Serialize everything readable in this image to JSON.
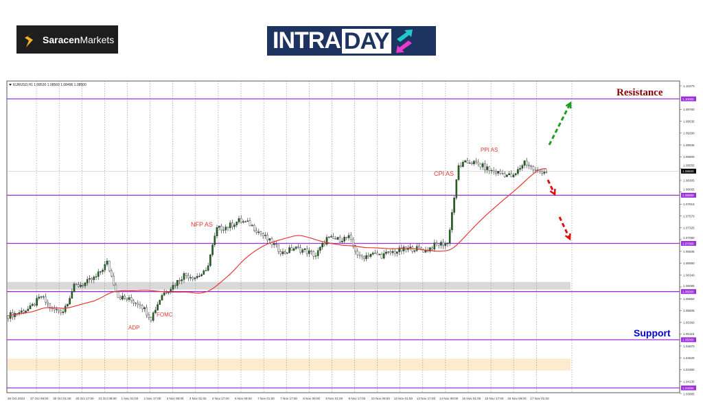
{
  "logos": {
    "left": "SaracenMarkets",
    "right": "INTRADAY"
  },
  "chart_data": {
    "type": "candlestick",
    "symbol_header": "EURUSD,H1  1.08530 1.08569 1.08496 1.08500",
    "current_price": 1.085,
    "ylim": [
      1.03885,
      1.1027
    ],
    "y_ticks": [
      "1.10270",
      "1.09780",
      "1.09535",
      "1.09290",
      "1.09045",
      "1.08800",
      "1.08555",
      "1.08305",
      "1.08065",
      "1.07815",
      "1.07570",
      "1.07325",
      "1.07080",
      "1.06835",
      "1.06590",
      "1.06340",
      "1.06095",
      "1.05850",
      "1.05605",
      "1.05360",
      "1.05115",
      "1.04870",
      "1.04625",
      "1.04380",
      "1.04135",
      "1.03885"
    ],
    "x_ticks": [
      "26 Oct 2023",
      "27 Oct 09:00",
      "30 Oct 01:00",
      "30 Oct 17:00",
      "31 Oct 09:00",
      "1 Nov 01:00",
      "1 Nov 17:00",
      "2 Nov 09:00",
      "3 Nov 01:00",
      "3 Nov 17:00",
      "6 Nov 09:00",
      "7 Nov 01:00",
      "7 Nov 17:00",
      "8 Nov 09:00",
      "9 Nov 01:00",
      "9 Nov 17:00",
      "10 Nov 09:00",
      "13 Nov 01:00",
      "13 Nov 17:00",
      "14 Nov 09:00",
      "15 Nov 01:00",
      "15 Nov 17:00",
      "16 Nov 09:00",
      "17 Nov 01:00"
    ],
    "closes": [
      1.055,
      1.0557,
      1.0565,
      1.059,
      1.0562,
      1.056,
      1.061,
      1.0617,
      1.063,
      1.066,
      1.059,
      1.0583,
      1.0575,
      1.0545,
      1.0594,
      1.0612,
      1.0635,
      1.063,
      1.064,
      1.073,
      1.0735,
      1.0747,
      1.074,
      1.072,
      1.07,
      1.068,
      1.069,
      1.0685,
      1.0675,
      1.071,
      1.0708,
      1.0712,
      1.067,
      1.0678,
      1.0675,
      1.0682,
      1.0687,
      1.069,
      1.0685,
      1.0698,
      1.07,
      1.086,
      1.087,
      1.0862,
      1.085,
      1.0845,
      1.0838,
      1.087,
      1.085,
      1.085
    ],
    "levels": [
      {
        "price": 1.1,
        "label": "1.10000"
      },
      {
        "price": 1.08,
        "label": "1.08000"
      },
      {
        "price": 1.07,
        "label": "1.07000"
      },
      {
        "price": 1.06,
        "label": "1.06000"
      },
      {
        "price": 1.05,
        "label": "1.05000"
      },
      {
        "price": 1.04,
        "label": "1.04000"
      }
    ],
    "zones": [
      {
        "from": 1.0604,
        "to": 1.062,
        "color": "#d9d9d9"
      },
      {
        "from": 1.0436,
        "to": 1.0461,
        "color": "#fdebd0"
      }
    ],
    "annotations": [
      {
        "text": "Resistance",
        "color": "#8b0000"
      },
      {
        "text": "Support",
        "color": "#0000cc"
      },
      {
        "text": "CPI AS",
        "color": "#e53935"
      },
      {
        "text": "PPI AS",
        "color": "#e53935"
      },
      {
        "text": "NFP AS",
        "color": "#e53935"
      },
      {
        "text": "FOMC",
        "color": "#e53935"
      },
      {
        "text": "ADP",
        "color": "#e53935"
      }
    ],
    "colors": {
      "level": "#9b30d9",
      "ma": "#e53935",
      "candle": "#1a6b1a",
      "up_arrow": "#1e9e1e",
      "down_arrow": "#e01010"
    }
  }
}
